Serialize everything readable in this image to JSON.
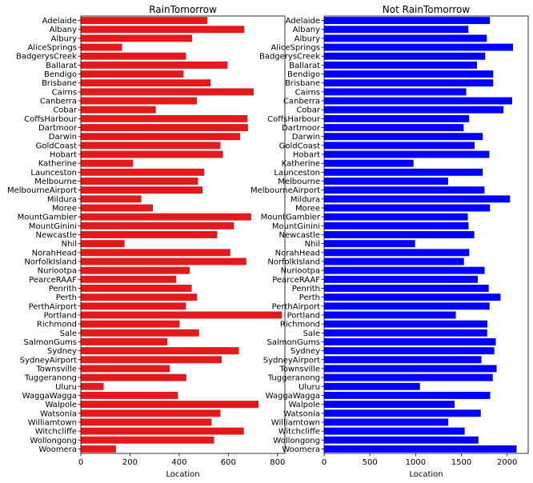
{
  "chart_data": [
    {
      "type": "bar",
      "orientation": "horizontal",
      "title": "RainTomorrow",
      "xlabel": "Location",
      "ylabel": "",
      "xlim": [
        0,
        830
      ],
      "xticks": [
        0,
        200,
        400,
        600,
        800
      ],
      "color": "#e31a1c",
      "categories": [
        "Adelaide",
        "Albany",
        "Albury",
        "AliceSprings",
        "BadgerysCreek",
        "Ballarat",
        "Bendigo",
        "Brisbane",
        "Cairns",
        "Canberra",
        "Cobar",
        "CoffsHarbour",
        "Dartmoor",
        "Darwin",
        "GoldCoast",
        "Hobart",
        "Katherine",
        "Launceston",
        "Melbourne",
        "MelbourneAirport",
        "Mildura",
        "Moree",
        "MountGambier",
        "MountGinini",
        "Newcastle",
        "Nhil",
        "NorahHead",
        "NorfolkIsland",
        "Nuriootpa",
        "PearceRAAF",
        "Penrith",
        "Perth",
        "PerthAirport",
        "Portland",
        "Richmond",
        "Sale",
        "SalmonGums",
        "Sydney",
        "SydneyAirport",
        "Townsville",
        "Tuggeranong",
        "Uluru",
        "WaggaWagga",
        "Walpole",
        "Watsonia",
        "Williamtown",
        "Witchcliffe",
        "Wollongong",
        "Woomera"
      ],
      "values": [
        515,
        665,
        453,
        168,
        428,
        597,
        418,
        528,
        703,
        472,
        305,
        678,
        680,
        648,
        568,
        578,
        213,
        502,
        477,
        495,
        246,
        293,
        693,
        623,
        555,
        178,
        608,
        673,
        443,
        388,
        451,
        473,
        428,
        818,
        402,
        481,
        352,
        643,
        573,
        362,
        429,
        93,
        395,
        723,
        568,
        532,
        663,
        542,
        143
      ]
    },
    {
      "type": "bar",
      "orientation": "horizontal",
      "title": "Not RainTomorrow",
      "xlabel": "Location",
      "ylabel": "",
      "xlim": [
        0,
        2230
      ],
      "xticks": [
        0,
        500,
        1000,
        1500,
        2000
      ],
      "color": "#0000ff",
      "categories": [
        "Adelaide",
        "Albany",
        "Albury",
        "AliceSprings",
        "BadgerysCreek",
        "Ballarat",
        "Bendigo",
        "Brisbane",
        "Cairns",
        "Canberra",
        "Cobar",
        "CoffsHarbour",
        "Dartmoor",
        "Darwin",
        "GoldCoast",
        "Hobart",
        "Katherine",
        "Launceston",
        "Melbourne",
        "MelbourneAirport",
        "Mildura",
        "Moree",
        "MountGambier",
        "MountGinini",
        "Newcastle",
        "Nhil",
        "NorahHead",
        "NorfolkIsland",
        "Nuriootpa",
        "PearceRAAF",
        "Penrith",
        "Perth",
        "PerthAirport",
        "Portland",
        "Richmond",
        "Sale",
        "SalmonGums",
        "Sydney",
        "SydneyAirport",
        "Townsville",
        "Tuggeranong",
        "Uluru",
        "WaggaWagga",
        "Walpole",
        "Watsonia",
        "Williamtown",
        "Witchcliffe",
        "Wollongong",
        "Woomera"
      ],
      "values": [
        1812,
        1576,
        1778,
        2064,
        1760,
        1670,
        1848,
        1848,
        1553,
        2055,
        1960,
        1585,
        1525,
        1733,
        1644,
        1806,
        977,
        1733,
        1355,
        1753,
        2032,
        1813,
        1570,
        1578,
        1641,
        994,
        1586,
        1528,
        1754,
        1679,
        1799,
        1928,
        1808,
        1439,
        1784,
        1782,
        1876,
        1860,
        1719,
        1885,
        1843,
        1047,
        1815,
        1426,
        1712,
        1357,
        1536,
        1686,
        2103
      ]
    }
  ]
}
